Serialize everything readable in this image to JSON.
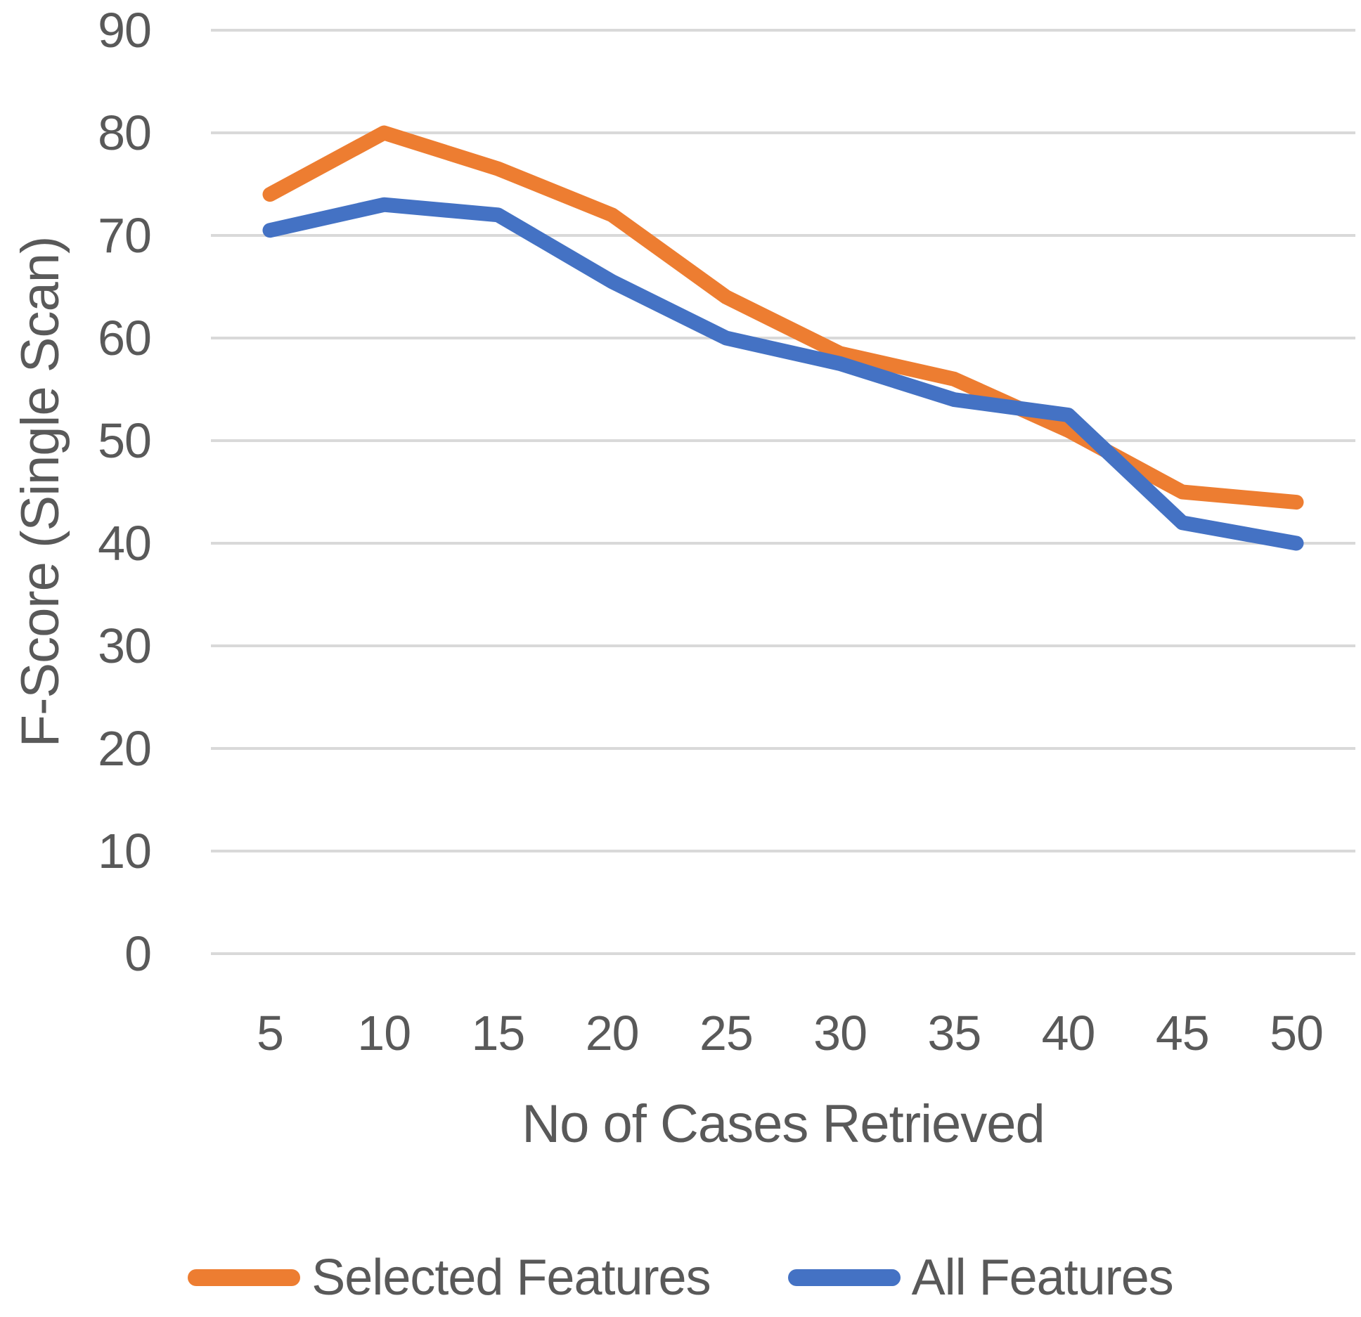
{
  "chart_data": {
    "type": "line",
    "title": "",
    "xlabel": "No of Cases Retrieved",
    "ylabel": "F-Score (Single Scan)",
    "categories": [
      "5",
      "10",
      "15",
      "20",
      "25",
      "30",
      "35",
      "40",
      "45",
      "50"
    ],
    "y_ticks": [
      0,
      10,
      20,
      30,
      40,
      50,
      60,
      70,
      80,
      90
    ],
    "ylim": [
      0,
      90
    ],
    "grid": "horizontal",
    "legend_position": "bottom",
    "series": [
      {
        "name": "Selected Features",
        "color": "#ED7D31",
        "values": [
          74,
          80,
          76.5,
          72,
          64,
          58.5,
          56,
          51,
          45,
          44
        ]
      },
      {
        "name": "All Features",
        "color": "#4472C4",
        "values": [
          70.5,
          73,
          72,
          65.5,
          60,
          57.5,
          54,
          52.5,
          42,
          40
        ]
      }
    ]
  },
  "colors": {
    "grid": "#D9D9D9",
    "text": "#595959",
    "background": "#FFFFFF"
  }
}
